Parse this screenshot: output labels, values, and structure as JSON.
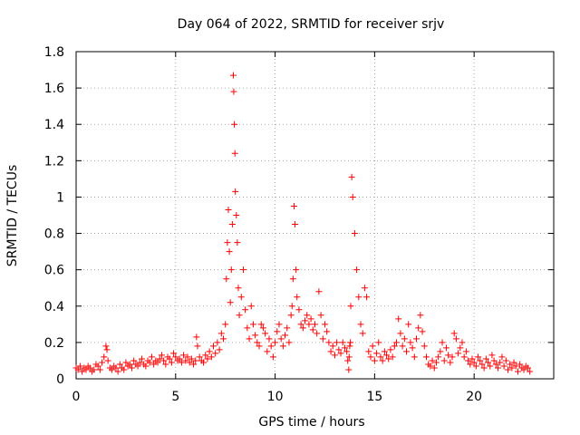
{
  "chart_data": {
    "type": "scatter",
    "title": "Day 064 of 2022, SRMTID for receiver srjv",
    "xlabel": "GPS time / hours",
    "ylabel": "SRMTID / TECUs",
    "xlim": [
      0,
      24
    ],
    "ylim": [
      0,
      1.8
    ],
    "xticks": [
      0,
      5,
      10,
      15,
      20
    ],
    "xtick_labels": [
      "0",
      "5",
      "10",
      "15",
      "20"
    ],
    "yticks": [
      0,
      0.2,
      0.4,
      0.6,
      0.8,
      1.0,
      1.2,
      1.4,
      1.6,
      1.8
    ],
    "ytick_labels": [
      "0",
      "0.2",
      "0.4",
      "0.6",
      "0.8",
      "1",
      "1.2",
      "1.4",
      "1.6",
      "1.8"
    ],
    "grid": true,
    "marker": "+",
    "color": "#ff0000",
    "series": [
      {
        "name": "srjv",
        "x": [
          0.0,
          0.1,
          0.2,
          0.3,
          0.4,
          0.5,
          0.6,
          0.7,
          0.8,
          0.9,
          1.0,
          1.1,
          1.2,
          1.3,
          1.4,
          1.5,
          1.55,
          1.6,
          1.7,
          1.8,
          1.9,
          2.0,
          2.1,
          2.2,
          2.3,
          2.4,
          2.5,
          2.6,
          2.7,
          2.8,
          2.9,
          3.0,
          3.1,
          3.2,
          3.3,
          3.4,
          3.5,
          3.6,
          3.7,
          3.8,
          3.9,
          4.0,
          4.1,
          4.2,
          4.3,
          4.4,
          4.5,
          4.6,
          4.7,
          4.8,
          4.9,
          5.0,
          5.1,
          5.2,
          5.3,
          5.4,
          5.5,
          5.6,
          5.7,
          5.8,
          5.9,
          6.0,
          6.05,
          6.1,
          6.2,
          6.3,
          6.4,
          6.5,
          6.6,
          6.7,
          6.8,
          6.9,
          7.0,
          7.1,
          7.2,
          7.3,
          7.4,
          7.5,
          7.55,
          7.6,
          7.65,
          7.7,
          7.75,
          7.8,
          7.85,
          7.9,
          7.92,
          7.95,
          7.98,
          8.0,
          8.05,
          8.1,
          8.15,
          8.2,
          8.3,
          8.4,
          8.5,
          8.6,
          8.7,
          8.8,
          8.9,
          9.0,
          9.1,
          9.2,
          9.3,
          9.4,
          9.5,
          9.6,
          9.7,
          9.8,
          9.9,
          10.0,
          10.1,
          10.2,
          10.3,
          10.4,
          10.5,
          10.6,
          10.7,
          10.8,
          10.85,
          10.9,
          10.95,
          11.0,
          11.05,
          11.1,
          11.2,
          11.3,
          11.4,
          11.5,
          11.6,
          11.7,
          11.8,
          11.9,
          12.0,
          12.1,
          12.2,
          12.3,
          12.4,
          12.5,
          12.6,
          12.7,
          12.8,
          12.9,
          13.0,
          13.1,
          13.2,
          13.3,
          13.4,
          13.5,
          13.6,
          13.65,
          13.7,
          13.72,
          13.75,
          13.78,
          13.8,
          13.85,
          13.9,
          14.0,
          14.1,
          14.2,
          14.3,
          14.4,
          14.5,
          14.6,
          14.7,
          14.8,
          14.9,
          15.0,
          15.1,
          15.2,
          15.3,
          15.4,
          15.5,
          15.6,
          15.7,
          15.8,
          15.9,
          16.0,
          16.1,
          16.2,
          16.3,
          16.4,
          16.5,
          16.6,
          16.7,
          16.8,
          16.9,
          17.0,
          17.1,
          17.2,
          17.3,
          17.4,
          17.5,
          17.6,
          17.7,
          17.8,
          17.9,
          18.0,
          18.1,
          18.2,
          18.3,
          18.4,
          18.5,
          18.6,
          18.7,
          18.8,
          18.9,
          19.0,
          19.1,
          19.2,
          19.3,
          19.4,
          19.5,
          19.6,
          19.7,
          19.8,
          19.9,
          20.0,
          20.1,
          20.2,
          20.3,
          20.4,
          20.5,
          20.6,
          20.7,
          20.8,
          20.9,
          21.0,
          21.1,
          21.2,
          21.3,
          21.4,
          21.5,
          21.6,
          21.7,
          21.8,
          21.9,
          22.0,
          22.1,
          22.2,
          22.3,
          22.4,
          22.5,
          22.6,
          22.7,
          22.8
        ],
        "y": [
          0.06,
          0.05,
          0.07,
          0.04,
          0.06,
          0.05,
          0.07,
          0.06,
          0.04,
          0.05,
          0.08,
          0.07,
          0.05,
          0.09,
          0.12,
          0.18,
          0.16,
          0.1,
          0.06,
          0.05,
          0.07,
          0.06,
          0.04,
          0.08,
          0.06,
          0.05,
          0.09,
          0.07,
          0.08,
          0.06,
          0.1,
          0.08,
          0.07,
          0.09,
          0.11,
          0.08,
          0.07,
          0.1,
          0.09,
          0.12,
          0.08,
          0.1,
          0.09,
          0.11,
          0.13,
          0.1,
          0.08,
          0.12,
          0.11,
          0.09,
          0.14,
          0.12,
          0.1,
          0.11,
          0.09,
          0.13,
          0.1,
          0.12,
          0.09,
          0.11,
          0.08,
          0.1,
          0.23,
          0.18,
          0.12,
          0.1,
          0.09,
          0.13,
          0.11,
          0.15,
          0.12,
          0.18,
          0.14,
          0.2,
          0.16,
          0.25,
          0.22,
          0.3,
          0.55,
          0.75,
          0.93,
          0.7,
          0.42,
          0.6,
          0.85,
          1.67,
          1.58,
          1.4,
          1.24,
          1.03,
          0.9,
          0.75,
          0.5,
          0.35,
          0.45,
          0.6,
          0.38,
          0.28,
          0.22,
          0.4,
          0.3,
          0.24,
          0.2,
          0.18,
          0.3,
          0.28,
          0.25,
          0.15,
          0.22,
          0.18,
          0.12,
          0.2,
          0.26,
          0.3,
          0.22,
          0.18,
          0.24,
          0.28,
          0.2,
          0.35,
          0.4,
          0.55,
          0.95,
          0.85,
          0.6,
          0.45,
          0.38,
          0.3,
          0.28,
          0.32,
          0.35,
          0.3,
          0.33,
          0.27,
          0.3,
          0.25,
          0.48,
          0.35,
          0.22,
          0.3,
          0.26,
          0.2,
          0.15,
          0.18,
          0.13,
          0.2,
          0.16,
          0.14,
          0.2,
          0.17,
          0.15,
          0.1,
          0.05,
          0.12,
          0.18,
          0.2,
          0.4,
          1.11,
          1.0,
          0.8,
          0.6,
          0.45,
          0.3,
          0.25,
          0.5,
          0.45,
          0.15,
          0.12,
          0.18,
          0.1,
          0.14,
          0.2,
          0.12,
          0.1,
          0.15,
          0.13,
          0.11,
          0.16,
          0.12,
          0.18,
          0.2,
          0.33,
          0.25,
          0.18,
          0.22,
          0.15,
          0.3,
          0.2,
          0.17,
          0.12,
          0.22,
          0.28,
          0.35,
          0.26,
          0.18,
          0.12,
          0.08,
          0.07,
          0.1,
          0.06,
          0.09,
          0.12,
          0.15,
          0.2,
          0.1,
          0.17,
          0.13,
          0.09,
          0.12,
          0.25,
          0.22,
          0.14,
          0.17,
          0.2,
          0.12,
          0.15,
          0.1,
          0.08,
          0.11,
          0.09,
          0.07,
          0.12,
          0.1,
          0.08,
          0.06,
          0.11,
          0.09,
          0.07,
          0.13,
          0.1,
          0.08,
          0.06,
          0.09,
          0.12,
          0.07,
          0.1,
          0.05,
          0.08,
          0.06,
          0.09,
          0.07,
          0.04,
          0.08,
          0.06,
          0.05,
          0.07,
          0.06,
          0.04
        ]
      }
    ]
  }
}
